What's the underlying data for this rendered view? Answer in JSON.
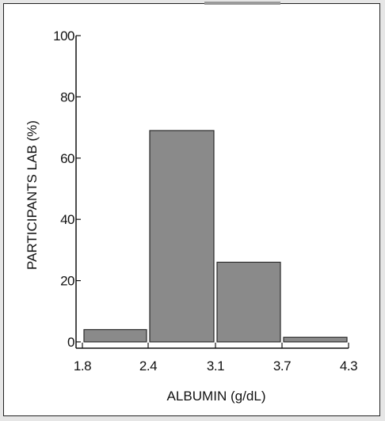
{
  "chart_data": {
    "type": "bar",
    "title": "",
    "xlabel": "ALBUMIN (g/dL)",
    "ylabel": "PARTICIPANTS LAB (%)",
    "x_ticks": [
      "1.8",
      "2.4",
      "3.1",
      "3.7",
      "4.3"
    ],
    "y_ticks": [
      "0",
      "20",
      "40",
      "60",
      "80",
      "100"
    ],
    "ylim": [
      0,
      100
    ],
    "bins": [
      {
        "from": 1.8,
        "to": 2.4,
        "value": 4
      },
      {
        "from": 2.4,
        "to": 3.1,
        "value": 69
      },
      {
        "from": 3.1,
        "to": 3.7,
        "value": 26
      },
      {
        "from": 3.7,
        "to": 4.3,
        "value": 1.5
      }
    ],
    "grid": false,
    "colors": {
      "bar": "#8a8a8a",
      "bar_edge": "#2a2a2a",
      "axis": "#111111"
    }
  }
}
